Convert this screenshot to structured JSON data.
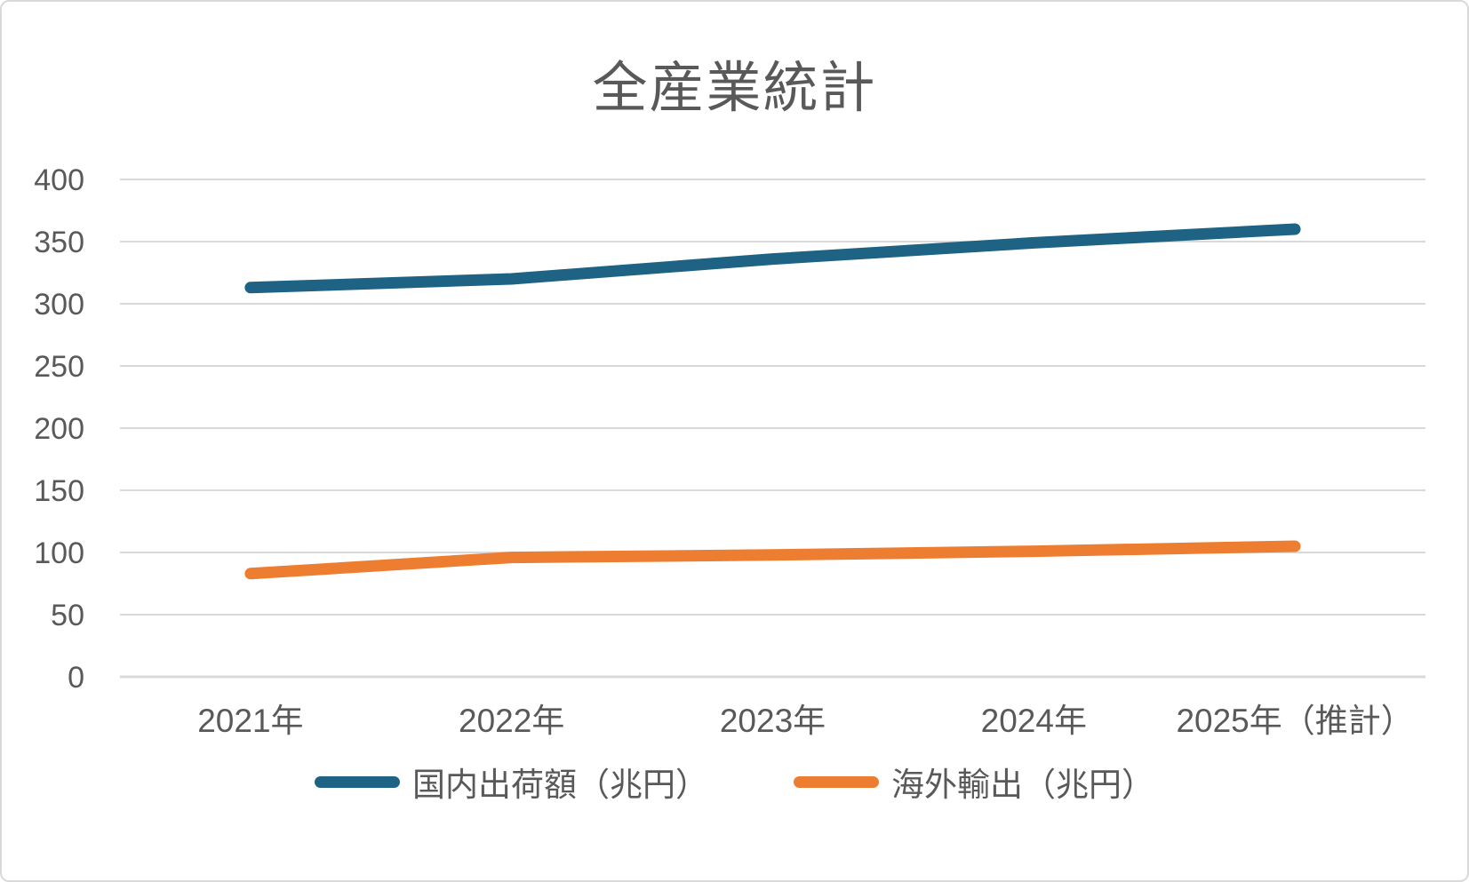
{
  "title": "全産業統計",
  "colors": {
    "series_domestic": "#1F6384",
    "series_export": "#ED7D31",
    "gridline": "#D9D9D9",
    "axis_text": "#595959",
    "title_text": "#595959",
    "frame_border": "#D9D9D9",
    "background": "#FFFFFF"
  },
  "chart_data": {
    "type": "line",
    "title": "全産業統計",
    "categories": [
      "2021年",
      "2022年",
      "2023年",
      "2024年",
      "2025年（推計）"
    ],
    "series": [
      {
        "name": "国内出荷額（兆円）",
        "color": "#1F6384",
        "values": [
          313,
          320,
          336,
          349,
          360
        ]
      },
      {
        "name": "海外輸出（兆円）",
        "color": "#ED7D31",
        "values": [
          83,
          96,
          98,
          101,
          105
        ]
      }
    ],
    "xlabel": "",
    "ylabel": "",
    "ylim": [
      0,
      400
    ],
    "yticks": [
      0,
      50,
      100,
      150,
      200,
      250,
      300,
      350,
      400
    ],
    "grid": true,
    "grid_axis": "y",
    "legend_position": "bottom"
  }
}
